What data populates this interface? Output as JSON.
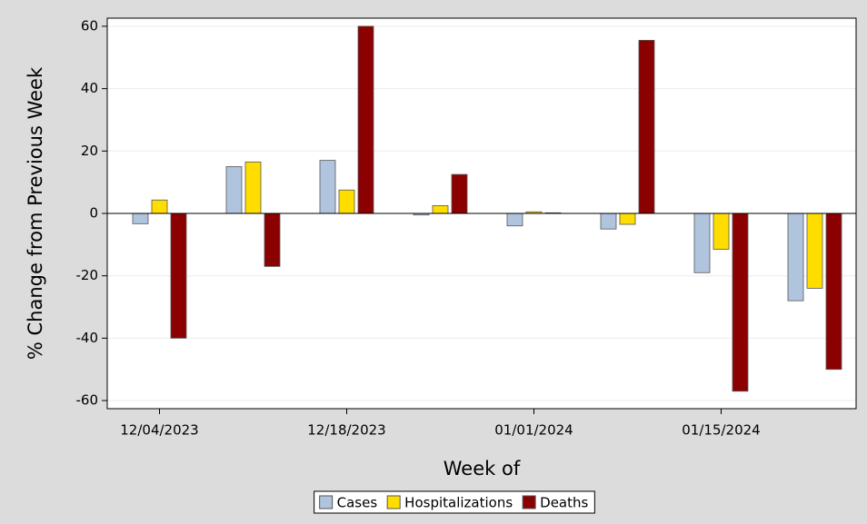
{
  "chart_data": {
    "type": "bar",
    "x_label": "Week of",
    "y_label": "% Change from Previous Week",
    "categories": [
      "12/04/2023",
      null,
      "12/18/2023",
      null,
      "01/01/2024",
      null,
      "01/15/2024",
      null
    ],
    "series": [
      {
        "name": "Cases",
        "color": "#b0c4de",
        "values": [
          -3.3,
          15,
          17,
          -0.5,
          -4,
          -5,
          -19,
          -28
        ]
      },
      {
        "name": "Hospitalizations",
        "color": "#ffdd00",
        "values": [
          4.3,
          16.5,
          7.5,
          2.5,
          0.5,
          -3.5,
          -11.5,
          -24
        ]
      },
      {
        "name": "Deaths",
        "color": "#8b0000",
        "values": [
          -40,
          -17,
          60,
          12.5,
          0.2,
          55.5,
          -57,
          -50
        ]
      }
    ],
    "ylim": [
      -62.6,
      62.6
    ],
    "yticks": [
      -60,
      -40,
      -20,
      0,
      20,
      40,
      60
    ],
    "grid": true,
    "legend": "bottom"
  }
}
